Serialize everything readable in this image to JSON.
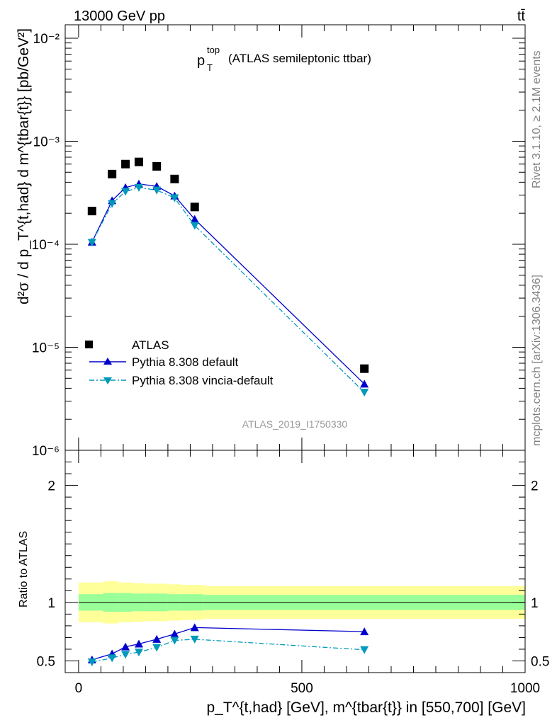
{
  "header": {
    "energy_label": "13000 GeV pp",
    "process_label": "tt̄"
  },
  "side_labels": {
    "rivet": "Rivet 3.1.10, ≥ 2.1M events",
    "mcplots": "mcplots.cern.ch [arXiv:1306.3436]"
  },
  "plot": {
    "title_main": "p",
    "title_sup": "top",
    "title_sub": "T",
    "title_rest": "(ATLAS semileptonic ttbar)",
    "analysis_id": "ATLAS_2019_I1750330"
  },
  "colors": {
    "data": "#000000",
    "default": "#0000cc",
    "vincia": "#0099bb",
    "band_inner": "#99ff99",
    "band_outer": "#ffff99"
  },
  "chart_data": [
    {
      "type": "scatter",
      "panel": "main",
      "yscale": "log",
      "xlim": [
        -30,
        1000
      ],
      "ylim": [
        1e-06,
        0.0135
      ],
      "ylabel": "d²σ / d p_T^{t,had} d m^{tbar{t}} [pb/GeV²]",
      "ytick_labels": [
        "10⁻⁶",
        "10⁻⁵",
        "10⁻⁴",
        "10⁻³",
        "10⁻²"
      ],
      "ytick_values": [
        1e-06,
        1e-05,
        0.0001,
        0.001,
        0.01
      ],
      "legend_position": "lower-left",
      "series": [
        {
          "name": "ATLAS",
          "x": [
            30,
            75,
            105,
            135,
            175,
            215,
            260,
            640
          ],
          "y": [
            0.00021,
            0.00048,
            0.0006,
            0.00063,
            0.00057,
            0.00043,
            0.00023,
            6.2e-06
          ]
        },
        {
          "name": "Pythia 8.308 default",
          "x": [
            30,
            75,
            105,
            135,
            175,
            215,
            260,
            640
          ],
          "y": [
            0.000105,
            0.000265,
            0.000355,
            0.000385,
            0.000365,
            0.000295,
            0.000175,
            4.4e-06
          ]
        },
        {
          "name": "Pythia 8.308 vincia-default",
          "x": [
            30,
            75,
            105,
            135,
            175,
            215,
            260,
            640
          ],
          "y": [
            0.000104,
            0.000248,
            0.000325,
            0.000355,
            0.000335,
            0.000282,
            0.000152,
            3.65e-06
          ]
        }
      ]
    },
    {
      "type": "line",
      "panel": "ratio",
      "xlim": [
        -30,
        1000
      ],
      "ylim": [
        0.4,
        2.3
      ],
      "ylabel": "Ratio to ATLAS",
      "xlabel": "p_T^{t,had} [GeV], m^{tbar{t}} in [550,700] [GeV]",
      "xtick_labels": [
        "0",
        "500",
        "1000"
      ],
      "xtick_values": [
        0,
        500,
        1000
      ],
      "ytick_labels": [
        "0.5",
        "1",
        "2"
      ],
      "ytick_values": [
        0.5,
        1,
        2
      ],
      "band_bins": [
        0,
        55,
        90,
        120,
        150,
        200,
        230,
        280,
        1000
      ],
      "band_inner": [
        0.07,
        0.08,
        0.08,
        0.075,
        0.075,
        0.07,
        0.07,
        0.065
      ],
      "band_outer": [
        0.17,
        0.18,
        0.17,
        0.165,
        0.16,
        0.155,
        0.15,
        0.14
      ],
      "series": [
        {
          "name": "Pythia 8.308 default",
          "x": [
            30,
            75,
            105,
            135,
            175,
            215,
            260,
            640
          ],
          "y": [
            0.51,
            0.56,
            0.62,
            0.645,
            0.685,
            0.73,
            0.785,
            0.75
          ]
        },
        {
          "name": "Pythia 8.308 vincia-default",
          "x": [
            30,
            75,
            105,
            135,
            175,
            215,
            260,
            640
          ],
          "y": [
            0.49,
            0.525,
            0.555,
            0.575,
            0.615,
            0.675,
            0.685,
            0.595
          ]
        }
      ]
    }
  ]
}
